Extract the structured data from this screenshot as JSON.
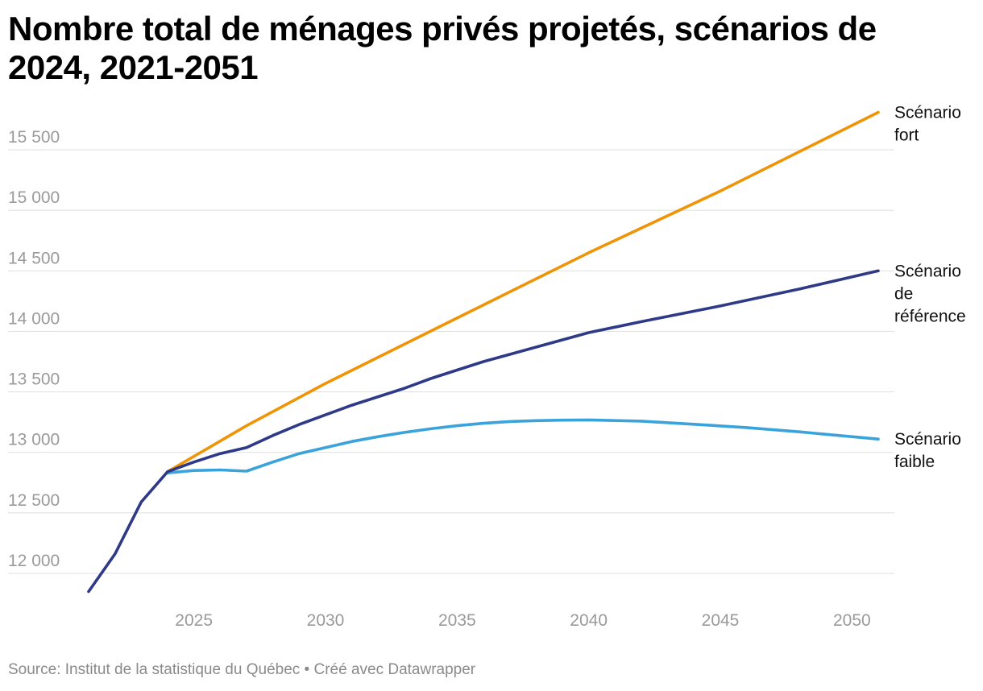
{
  "header": {
    "title": "Nombre total de ménages privés projetés, scénarios de 2024, 2021-2051"
  },
  "footer": {
    "source": "Source: Institut de la statistique du Québec • Créé avec Datawrapper"
  },
  "chart_data": {
    "type": "line",
    "title": "Nombre total de ménages privés projetés, scénarios de 2024, 2021-2051",
    "xlim": [
      2021,
      2051
    ],
    "ylim": [
      11800,
      15800
    ],
    "x_ticks": [
      2025,
      2030,
      2035,
      2040,
      2045,
      2050
    ],
    "y_ticks": [
      12000,
      12500,
      13000,
      13500,
      14000,
      14500,
      15000,
      15500
    ],
    "y_tick_labels": [
      "12 000",
      "12 500",
      "13 000",
      "13 500",
      "14 000",
      "14 500",
      "15 000",
      "15 500"
    ],
    "grid": true,
    "legend": "direct labels at line ends (right)",
    "series": [
      {
        "name": "Scénario fort",
        "label_lines": [
          "Scénario",
          "fort"
        ],
        "color": "#ef9407",
        "points": [
          [
            2024,
            12840
          ],
          [
            2027,
            13220
          ],
          [
            2030,
            13570
          ],
          [
            2035,
            14110
          ],
          [
            2040,
            14650
          ],
          [
            2045,
            15160
          ],
          [
            2051,
            15810
          ]
        ]
      },
      {
        "name": "Scénario de référence",
        "label_lines": [
          "Scénario",
          "de",
          "référence"
        ],
        "color": "#2e3a87",
        "points": [
          [
            2021,
            11850
          ],
          [
            2022,
            12160
          ],
          [
            2023,
            12590
          ],
          [
            2024,
            12840
          ],
          [
            2025,
            12920
          ],
          [
            2026,
            12990
          ],
          [
            2027,
            13040
          ],
          [
            2028,
            13140
          ],
          [
            2029,
            13230
          ],
          [
            2030,
            13310
          ],
          [
            2031,
            13390
          ],
          [
            2032,
            13460
          ],
          [
            2033,
            13530
          ],
          [
            2034,
            13610
          ],
          [
            2035,
            13680
          ],
          [
            2036,
            13750
          ],
          [
            2037,
            13810
          ],
          [
            2038,
            13870
          ],
          [
            2039,
            13930
          ],
          [
            2040,
            13990
          ],
          [
            2042,
            14080
          ],
          [
            2045,
            14210
          ],
          [
            2048,
            14350
          ],
          [
            2051,
            14500
          ]
        ]
      },
      {
        "name": "Scénario faible",
        "label_lines": [
          "Scénario",
          "faible"
        ],
        "color": "#3ba3dc",
        "points": [
          [
            2024,
            12830
          ],
          [
            2025,
            12850
          ],
          [
            2026,
            12855
          ],
          [
            2027,
            12845
          ],
          [
            2028,
            12920
          ],
          [
            2029,
            12990
          ],
          [
            2030,
            13040
          ],
          [
            2031,
            13090
          ],
          [
            2032,
            13130
          ],
          [
            2033,
            13165
          ],
          [
            2034,
            13195
          ],
          [
            2035,
            13220
          ],
          [
            2036,
            13240
          ],
          [
            2037,
            13255
          ],
          [
            2038,
            13262
          ],
          [
            2039,
            13266
          ],
          [
            2040,
            13268
          ],
          [
            2042,
            13258
          ],
          [
            2044,
            13232
          ],
          [
            2046,
            13205
          ],
          [
            2048,
            13170
          ],
          [
            2051,
            13110
          ]
        ]
      }
    ]
  }
}
